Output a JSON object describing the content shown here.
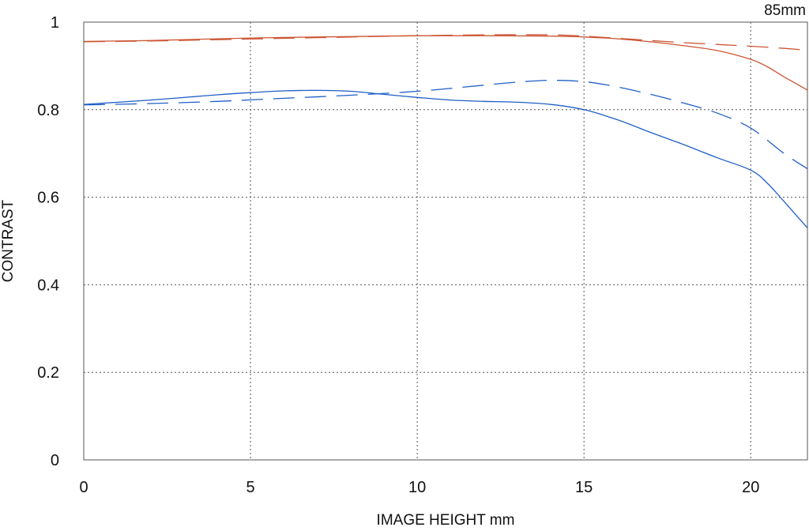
{
  "chart_data": {
    "type": "line",
    "title": "",
    "annotation": "85mm",
    "xlabel": "IMAGE HEIGHT  mm",
    "ylabel": "CONTRAST",
    "xlim": [
      0,
      21.7
    ],
    "ylim": [
      0,
      1
    ],
    "xticks": [
      0,
      5,
      10,
      15,
      20
    ],
    "xtick_labels": [
      "0",
      "5",
      "10",
      "15",
      "20"
    ],
    "yticks": [
      0,
      0.2,
      0.4,
      0.6,
      0.8,
      1
    ],
    "ytick_labels": [
      "0",
      "0.2",
      "0.4",
      "0.6",
      "0.8",
      "1"
    ],
    "grid": true,
    "grid_style": "dotted",
    "series": [
      {
        "color": "#cc5533",
        "dash": "solid",
        "x": [
          0,
          2,
          4,
          6,
          8,
          10,
          12,
          14,
          15,
          16,
          17,
          18,
          19,
          20,
          20.5,
          21,
          21.7
        ],
        "y": [
          0.956,
          0.958,
          0.962,
          0.965,
          0.967,
          0.969,
          0.969,
          0.968,
          0.966,
          0.962,
          0.955,
          0.946,
          0.935,
          0.915,
          0.898,
          0.875,
          0.845
        ]
      },
      {
        "color": "#cc5533",
        "dash": "dashed",
        "x": [
          0,
          2,
          4,
          6,
          8,
          10,
          12,
          14,
          15,
          16,
          17,
          18,
          19,
          20,
          21,
          21.7
        ],
        "y": [
          0.955,
          0.957,
          0.96,
          0.963,
          0.966,
          0.969,
          0.971,
          0.971,
          0.968,
          0.963,
          0.958,
          0.953,
          0.949,
          0.945,
          0.94,
          0.936
        ]
      },
      {
        "color": "#1f5fc8",
        "dash": "solid",
        "x": [
          0,
          2,
          4,
          5,
          6,
          7,
          8,
          9,
          10,
          11,
          12,
          13,
          14,
          15,
          16,
          17,
          18,
          19,
          20,
          20.5,
          21,
          21.7
        ],
        "y": [
          0.812,
          0.822,
          0.834,
          0.839,
          0.843,
          0.844,
          0.842,
          0.835,
          0.828,
          0.822,
          0.819,
          0.817,
          0.812,
          0.8,
          0.777,
          0.748,
          0.72,
          0.69,
          0.662,
          0.632,
          0.59,
          0.53
        ]
      },
      {
        "color": "#1f5fc8",
        "dash": "dashed",
        "x": [
          0,
          2,
          4,
          6,
          8,
          10,
          12,
          13,
          14,
          15,
          16,
          17,
          18,
          19,
          20,
          21,
          21.7
        ],
        "y": [
          0.811,
          0.814,
          0.819,
          0.826,
          0.833,
          0.842,
          0.856,
          0.863,
          0.867,
          0.864,
          0.852,
          0.835,
          0.815,
          0.792,
          0.758,
          0.7,
          0.665
        ]
      }
    ]
  }
}
